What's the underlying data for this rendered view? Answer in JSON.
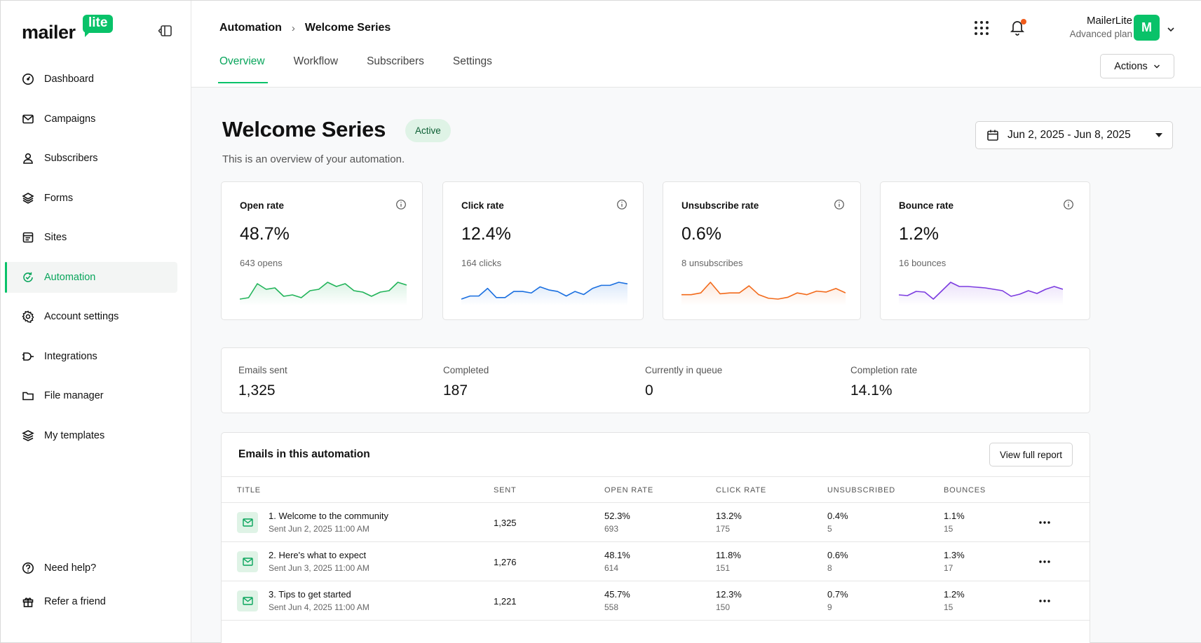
{
  "brand": {
    "word": "mailer",
    "badge": "lite",
    "accent": "#09c269"
  },
  "sidebar": {
    "items": [
      {
        "label": "Dashboard",
        "icon": "dashboard-icon"
      },
      {
        "label": "Campaigns",
        "icon": "mail-icon"
      },
      {
        "label": "Subscribers",
        "icon": "user-icon"
      },
      {
        "label": "Forms",
        "icon": "layers-icon"
      },
      {
        "label": "Sites",
        "icon": "site-icon"
      },
      {
        "label": "Automation",
        "icon": "automation-icon",
        "active": true
      },
      {
        "label": "Account settings",
        "icon": "gear-icon"
      },
      {
        "label": "Integrations",
        "icon": "plug-icon"
      },
      {
        "label": "File manager",
        "icon": "folder-icon"
      },
      {
        "label": "My templates",
        "icon": "templates-icon"
      }
    ],
    "bottom": [
      {
        "label": "Need help?",
        "icon": "help-icon"
      },
      {
        "label": "Refer a friend",
        "icon": "gift-icon"
      }
    ]
  },
  "header": {
    "breadcrumb": [
      "Automation",
      "Welcome Series"
    ],
    "tabs": [
      "Overview",
      "Workflow",
      "Subscribers",
      "Settings"
    ],
    "active_tab": "Overview",
    "account": {
      "name": "MailerLite",
      "plan": "Advanced plan",
      "initial": "M"
    },
    "actions_label": "Actions"
  },
  "page": {
    "title": "Welcome Series",
    "status": "Active",
    "subtitle": "This is an overview of your automation.",
    "date_range": "Jun 2, 2025 - Jun 8, 2025"
  },
  "metrics": [
    {
      "label": "Open rate",
      "value": "48.7%",
      "sub": "643 opens",
      "color": "#22b45a",
      "trend": [
        48.1,
        48.2,
        49.2,
        48.8,
        48.9,
        48.3,
        48.4,
        48.2,
        48.7,
        48.8,
        49.3,
        49.0,
        49.2,
        48.7,
        48.6,
        48.3,
        48.6,
        48.7,
        49.3,
        49.1
      ]
    },
    {
      "label": "Click rate",
      "value": "12.4%",
      "sub": "164 clicks",
      "color": "#1a6fe0",
      "trend": [
        11.9,
        12.1,
        12.1,
        12.6,
        12.0,
        12.0,
        12.4,
        12.4,
        12.3,
        12.7,
        12.5,
        12.4,
        12.1,
        12.4,
        12.2,
        12.6,
        12.8,
        12.8,
        13.0,
        12.9
      ]
    },
    {
      "label": "Unsubscribe rate",
      "value": "0.6%",
      "sub": "8 unsubscribes",
      "color": "#f26a1b",
      "trend": [
        0.6,
        0.6,
        0.62,
        0.74,
        0.61,
        0.62,
        0.62,
        0.7,
        0.6,
        0.56,
        0.55,
        0.57,
        0.62,
        0.6,
        0.64,
        0.63,
        0.67,
        0.62
      ]
    },
    {
      "label": "Bounce rate",
      "value": "1.2%",
      "sub": "16 bounces",
      "color": "#7c3ce0",
      "trend": [
        1.12,
        1.11,
        1.17,
        1.16,
        1.06,
        1.18,
        1.3,
        1.24,
        1.24,
        1.23,
        1.22,
        1.2,
        1.18,
        1.1,
        1.13,
        1.18,
        1.14,
        1.2,
        1.24,
        1.2
      ]
    }
  ],
  "stats": [
    {
      "label": "Emails sent",
      "value": "1,325"
    },
    {
      "label": "Completed",
      "value": "187"
    },
    {
      "label": "Currently in queue",
      "value": "0"
    },
    {
      "label": "Completion rate",
      "value": "14.1%"
    }
  ],
  "emails": {
    "title": "Emails in this automation",
    "report_label": "View full report",
    "columns": [
      "TITLE",
      "SENT",
      "OPEN RATE",
      "CLICK RATE",
      "UNSUBSCRIBED",
      "BOUNCES"
    ],
    "rows": [
      {
        "title": "1. Welcome to the community",
        "sent_at": "Sent Jun 2, 2025 11:00 AM",
        "sent": "1,325",
        "open_rate": "52.3%",
        "opens": "693",
        "click_rate": "13.2%",
        "clicks": "175",
        "unsub": "0.4%",
        "unsub_count": "5",
        "bounce": "1.1%",
        "bounce_count": "15"
      },
      {
        "title": "2. Here's what to expect",
        "sent_at": "Sent Jun 3, 2025 11:00 AM",
        "sent": "1,276",
        "open_rate": "48.1%",
        "opens": "614",
        "click_rate": "11.8%",
        "clicks": "151",
        "unsub": "0.6%",
        "unsub_count": "8",
        "bounce": "1.3%",
        "bounce_count": "17"
      },
      {
        "title": "3. Tips to get started",
        "sent_at": "Sent Jun 4, 2025 11:00 AM",
        "sent": "1,221",
        "open_rate": "45.7%",
        "opens": "558",
        "click_rate": "12.3%",
        "clicks": "150",
        "unsub": "0.7%",
        "unsub_count": "9",
        "bounce": "1.2%",
        "bounce_count": "15"
      }
    ]
  }
}
